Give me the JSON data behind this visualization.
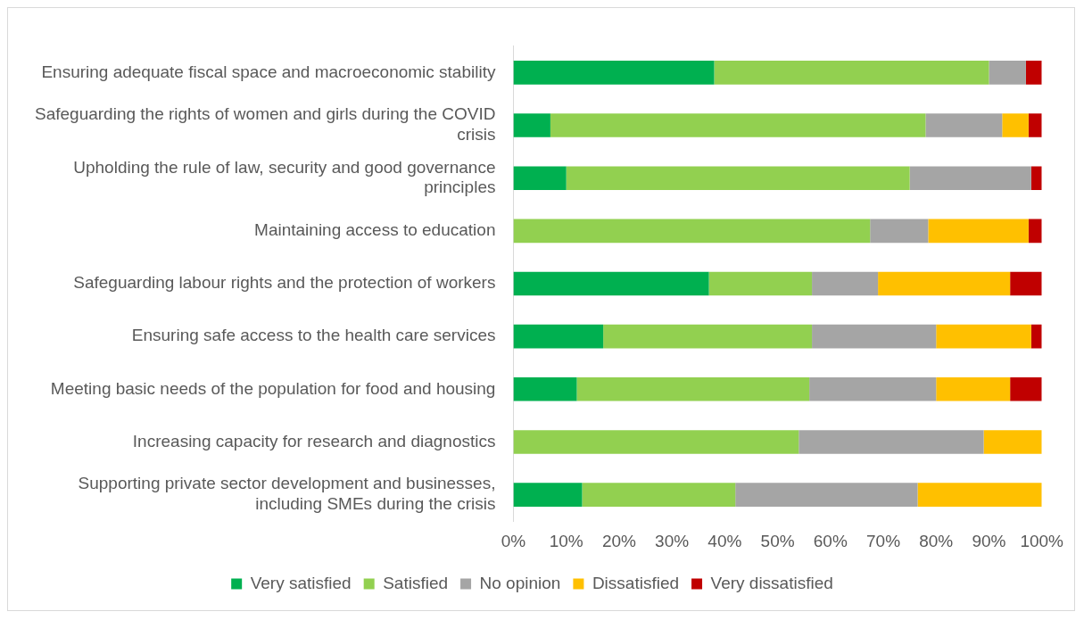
{
  "chart_data": {
    "type": "bar",
    "orientation": "horizontal",
    "stacked": true,
    "legend": "bottom",
    "grid": false,
    "categories": [
      "Ensuring adequate fiscal space and macroeconomic stability",
      "Safeguarding the rights of women and girls during the COVID crisis",
      "Upholding the rule of law, security and good governance principles",
      "Maintaining access to education",
      "Safeguarding labour rights and the protection of workers",
      "Ensuring safe access to the health care services",
      "Meeting basic needs of the population for food and housing",
      "Increasing capacity for research and diagnostics",
      "Supporting private sector development and businesses, including SMEs during the crisis"
    ],
    "series": [
      {
        "name": "Very satisfied",
        "color": "#00b050",
        "values": [
          38,
          7,
          10,
          0,
          37,
          17,
          12,
          0,
          13
        ]
      },
      {
        "name": "Satisfied",
        "color": "#92d050",
        "values": [
          52,
          71,
          65,
          67.5,
          19.5,
          39.5,
          44,
          54,
          29
        ]
      },
      {
        "name": "No opinion",
        "color": "#a5a5a5",
        "values": [
          7,
          14.5,
          23,
          11,
          12.5,
          23.5,
          24,
          35,
          34.5
        ]
      },
      {
        "name": "Dissatisfied",
        "color": "#ffc000",
        "values": [
          0,
          5,
          0,
          19,
          25,
          18,
          14,
          11,
          23.5
        ]
      },
      {
        "name": "Very dissatisfied",
        "color": "#c00000",
        "values": [
          3,
          2.5,
          2,
          2.5,
          6,
          2,
          6,
          0,
          0
        ]
      }
    ],
    "xlim": [
      0,
      100
    ],
    "xticks": [
      {
        "value": 0,
        "label": "0%"
      },
      {
        "value": 10,
        "label": "10%"
      },
      {
        "value": 20,
        "label": "20%"
      },
      {
        "value": 30,
        "label": "30%"
      },
      {
        "value": 40,
        "label": "40%"
      },
      {
        "value": 50,
        "label": "50%"
      },
      {
        "value": 60,
        "label": "60%"
      },
      {
        "value": 70,
        "label": "70%"
      },
      {
        "value": 80,
        "label": "80%"
      },
      {
        "value": 90,
        "label": "90%"
      },
      {
        "value": 100,
        "label": "100%"
      }
    ]
  }
}
